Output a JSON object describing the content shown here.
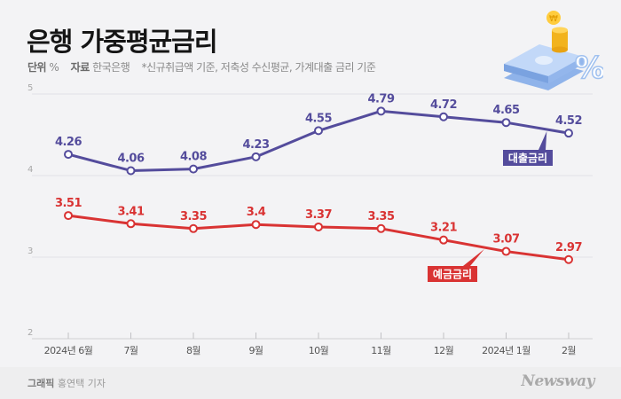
{
  "header": {
    "title": "은행 가중평균금리",
    "unit_label": "단위",
    "unit_value": "%",
    "source_label": "자료",
    "source_value": "한국은행",
    "note": "*신규취급액 기준, 저축성 수신평균, 가계대출 금리 기준"
  },
  "footer": {
    "credit_label": "그래픽",
    "credit_value": "홍연택 기자",
    "logo": "Newsway"
  },
  "illustration": "money-coins-percent-icon",
  "colors": {
    "loan": "#544c9c",
    "deposit": "#d93333",
    "grid": "#e2e2e6",
    "axis_text": "#9a9a9a",
    "tick_text": "#555555"
  },
  "chart_data": {
    "type": "line",
    "title": "은행 가중평균금리",
    "xlabel": "",
    "ylabel": "%",
    "categories": [
      "2024년 6월",
      "7월",
      "8월",
      "9월",
      "10월",
      "11월",
      "12월",
      "2024년 1월",
      "2월"
    ],
    "ylim": [
      2,
      5
    ],
    "yticks": [
      5,
      4,
      3,
      2
    ],
    "grid": true,
    "series": [
      {
        "name": "대출금리",
        "color": "#544c9c",
        "values": [
          4.26,
          4.06,
          4.08,
          4.23,
          4.55,
          4.79,
          4.72,
          4.65,
          4.52
        ],
        "labels": [
          "4.26",
          "4.06",
          "4.08",
          "4.23",
          "4.55",
          "4.79",
          "4.72",
          "4.65",
          "4.52"
        ]
      },
      {
        "name": "예금금리",
        "color": "#d93333",
        "values": [
          3.51,
          3.41,
          3.35,
          3.4,
          3.37,
          3.35,
          3.21,
          3.07,
          2.97
        ],
        "labels": [
          "3.51",
          "3.41",
          "3.35",
          "3.4",
          "3.37",
          "3.35",
          "3.21",
          "3.07",
          "2.97"
        ]
      }
    ]
  }
}
